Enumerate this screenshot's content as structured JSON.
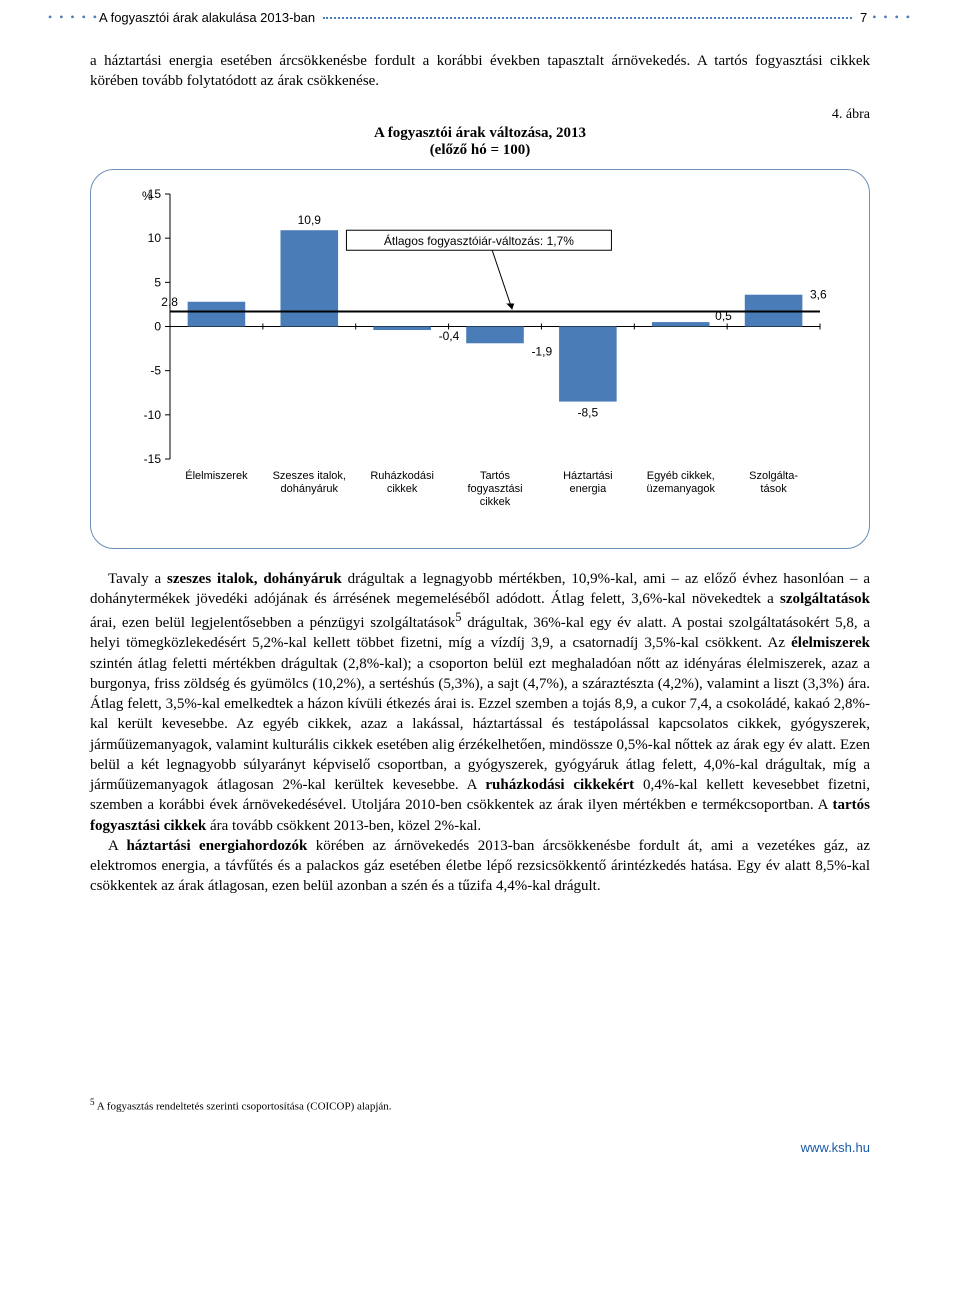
{
  "header": {
    "title": "A fogyasztói árak alakulása 2013-ban",
    "page_number": "7"
  },
  "intro": "a háztartási energia esetében árcsökkenésbe fordult a korábbi években tapasztalt árnövekedés. A tartós fogyasztási cikkek körében tovább folytatódott az árak csökkenése.",
  "figure": {
    "label": "4. ábra",
    "title": "A fogyasztói árak változása, 2013",
    "subtitle": "(előző hó = 100)"
  },
  "chart": {
    "type": "bar",
    "y_unit": "%",
    "categories": [
      "Élelmiszerek",
      "Szeszes italok,\ndohányáruk",
      "Ruházkodási\ncikkek",
      "Tartós\nfogyasztási\ncikkek",
      "Háztartási\nenergia",
      "Egyéb cikkek,\nüzemanyagok",
      "Szolgálta-\ntások"
    ],
    "values": [
      2.8,
      10.9,
      -0.4,
      -1.9,
      -8.5,
      0.5,
      3.6
    ],
    "value_labels": [
      "2,8",
      "10,9",
      "-0,4",
      "-1,9",
      "-8,5",
      "0,5",
      "3,6"
    ],
    "bar_color": "#4a7cb8",
    "annotation": {
      "text": "Átlagos fogyasztóiár-változás: 1,7%",
      "line_value": 1.7,
      "line_color": "#000000",
      "line_width": 2,
      "box_border": "#000000"
    },
    "ylim": [
      -15,
      15
    ],
    "ytick_step": 5,
    "yticks": [
      -15,
      -10,
      -5,
      0,
      5,
      10,
      15
    ],
    "background_color": "#ffffff",
    "grid_color": "#b0b0b0",
    "bar_width": 0.62,
    "axis_fontsize": 12,
    "label_fontsize": 11
  },
  "body_p1_a": "Tavaly a ",
  "body_p1_b": "szeszes italok, dohányáruk",
  "body_p1_c": " drágultak a legnagyobb mértékben, 10,9%-kal, ami – az előző évhez hasonlóan – a dohánytermékek jövedéki adójának és árrésének megemeléséből adódott. Átlag felett, 3,6%-kal növekedtek a ",
  "body_p1_d": "szolgáltatások",
  "body_p1_e": " árai, ezen belül legjelentősebben a pénzügyi szolgáltatások",
  "body_p1_f": " drágultak, 36%-kal egy év alatt. A postai szolgáltatásokért 5,8, a helyi tömegközlekedésért 5,2%-kal kellett többet fizetni, míg a vízdíj 3,9, a csatornadíj 3,5%-kal csökkent. Az ",
  "body_p1_g": "élelmiszerek",
  "body_p1_h": " szintén átlag feletti mértékben drágultak (2,8%-kal); a csoporton belül ezt meghaladóan nőtt az idényáras élelmiszerek, azaz a burgonya, friss zöldség és gyümölcs (10,2%), a sertéshús (5,3%), a sajt (4,7%), a száraztészta (4,2%), valamint a liszt (3,3%) ára. Átlag felett, 3,5%-kal emelkedtek a házon kívüli étkezés árai is. Ezzel szemben a tojás 8,9, a cukor 7,4, a csokoládé, kakaó 2,8%-kal került kevesebbe. Az egyéb cikkek, azaz a lakással, háztartással és testápolással kapcsolatos cikkek, gyógyszerek, járműüzemanyagok, valamint kulturális cikkek esetében alig érzékelhetően, mindössze 0,5%-kal nőttek az árak egy év alatt. Ezen belül a két legnagyobb súlyarányt képviselő csoportban, a gyógyszerek, gyógyáruk átlag felett, 4,0%-kal drágultak, míg a járműüzemanyagok átlagosan 2%-kal kerültek kevesebbe. A ",
  "body_p1_i": "ruházkodási cikkekért",
  "body_p1_j": " 0,4%-kal kellett kevesebbet fizetni, szemben a korábbi évek árnövekedésével. Utoljára 2010-ben csökkentek az árak ilyen mértékben e termékcsoportban. A ",
  "body_p1_k": "tartós fogyasztási cikkek",
  "body_p1_l": " ára tovább csökkent 2013-ben, közel 2%-kal.",
  "body_p2_a": "A ",
  "body_p2_b": "háztartási energiahordozók",
  "body_p2_c": " körében az árnövekedés 2013-ban árcsökkenésbe fordult át, ami a vezetékes gáz, az elektromos energia, a távfűtés és a palackos gáz esetében életbe lépő rezsicsökkentő árintézkedés hatása. Egy év alatt 8,5%-kal csökkentek az árak átlagosan, ezen belül azonban a szén és a tűzifa 4,4%-kal drágult.",
  "footnote_sup": "5",
  "footnote": " A fogyasztás rendeltetés szerinti csoportosítása (COICOP) alapján.",
  "footer_link": "www.ksh.hu"
}
